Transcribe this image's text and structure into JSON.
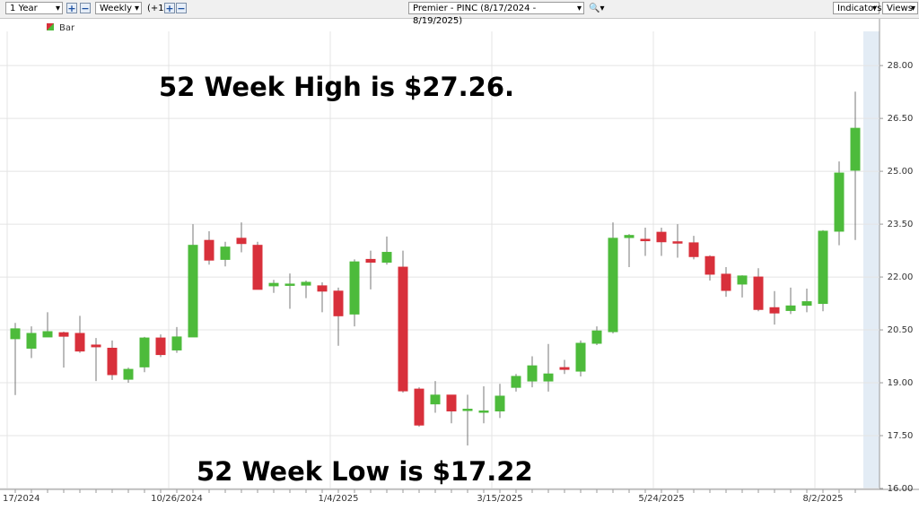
{
  "chart_data": {
    "type": "candlestick",
    "toolbar": {
      "range": "1 Year",
      "interval": "Weekly",
      "offset": "(+1)",
      "indicators": "Indicators",
      "views": "Views"
    },
    "title": "Premier - PINC (8/17/2024 - 8/19/2025)",
    "legend": "Bar",
    "annotations": [
      "52 Week High is $27.26.",
      "52 Week Low is $17.22"
    ],
    "categories": [
      "17/2024",
      null,
      null,
      null,
      null,
      null,
      null,
      null,
      null,
      null,
      "10/26/2024",
      null,
      null,
      null,
      null,
      null,
      null,
      null,
      null,
      null,
      "1/4/2025",
      null,
      null,
      null,
      null,
      null,
      null,
      null,
      null,
      null,
      "3/15/2025",
      null,
      null,
      null,
      null,
      null,
      null,
      null,
      null,
      null,
      "5/24/2025",
      null,
      null,
      null,
      null,
      null,
      null,
      null,
      null,
      null,
      "8/2/2025",
      null,
      null
    ],
    "open": [
      20.25,
      19.98,
      20.3,
      20.42,
      20.4,
      20.07,
      19.98,
      19.1,
      19.45,
      20.27,
      19.93,
      20.3,
      23.04,
      22.5,
      23.1,
      22.9,
      21.75,
      21.78,
      21.77,
      21.75,
      21.6,
      20.95,
      22.5,
      22.42,
      22.28,
      18.82,
      18.4,
      18.65,
      18.22,
      18.18,
      18.2,
      18.87,
      19.05,
      19.05,
      19.43,
      19.33,
      20.12,
      20.45,
      23.12,
      23.07,
      23.27,
      23.0,
      22.97,
      22.58,
      22.08,
      21.8,
      22.0,
      21.13,
      21.05,
      21.2,
      21.25,
      23.3,
      25.03
    ],
    "high": [
      20.7,
      20.6,
      21.0,
      20.45,
      20.9,
      20.27,
      20.2,
      19.43,
      20.3,
      20.37,
      20.58,
      23.5,
      23.3,
      23.0,
      23.55,
      23.0,
      21.92,
      22.1,
      21.9,
      21.85,
      21.7,
      22.5,
      22.75,
      23.15,
      22.75,
      18.87,
      19.05,
      18.65,
      18.66,
      18.9,
      18.97,
      19.25,
      19.75,
      20.1,
      19.65,
      20.2,
      20.6,
      23.55,
      23.22,
      23.4,
      23.4,
      23.5,
      23.17,
      22.62,
      22.28,
      22.05,
      22.25,
      21.6,
      21.7,
      21.67,
      23.33,
      25.28,
      27.26
    ],
    "low": [
      18.65,
      19.7,
      20.3,
      19.43,
      19.85,
      19.05,
      19.08,
      19.0,
      19.3,
      19.73,
      19.85,
      20.3,
      22.35,
      22.3,
      22.7,
      21.65,
      21.55,
      21.1,
      21.4,
      21.0,
      20.05,
      20.6,
      21.65,
      22.35,
      18.72,
      17.75,
      18.15,
      17.85,
      17.22,
      17.85,
      18.0,
      18.75,
      18.87,
      18.75,
      19.25,
      19.18,
      20.07,
      20.4,
      22.28,
      22.6,
      22.6,
      22.55,
      22.5,
      21.9,
      21.44,
      21.42,
      21.03,
      20.65,
      20.95,
      21.0,
      21.03,
      22.9,
      23.05
    ],
    "close": [
      20.53,
      20.4,
      20.45,
      20.32,
      19.9,
      20.02,
      19.23,
      19.38,
      20.27,
      19.8,
      20.3,
      22.9,
      22.48,
      22.85,
      22.95,
      21.65,
      21.82,
      21.8,
      21.85,
      21.6,
      20.9,
      22.43,
      22.42,
      22.7,
      18.77,
      17.8,
      18.65,
      18.2,
      18.25,
      18.2,
      18.62,
      19.18,
      19.48,
      19.25,
      19.38,
      20.12,
      20.47,
      23.1,
      23.18,
      23.03,
      23.0,
      22.98,
      22.58,
      22.08,
      21.62,
      22.03,
      21.08,
      20.98,
      21.18,
      21.3,
      23.3,
      24.95,
      26.22
    ],
    "ylim": [
      16,
      28.97
    ],
    "yticks": [
      {
        "value": 16,
        "label": "16.00"
      },
      {
        "value": 17.5,
        "label": "17.50"
      },
      {
        "value": 19,
        "label": "19.00"
      },
      {
        "value": 20.5,
        "label": "20.50"
      },
      {
        "value": 22,
        "label": "22.00"
      },
      {
        "value": 23.5,
        "label": "23.50"
      },
      {
        "value": 25,
        "label": "25.00"
      },
      {
        "value": 26.5,
        "label": "26.50"
      },
      {
        "value": 28,
        "label": "28.00"
      }
    ],
    "grid": true,
    "up_color": "#4dbb3b",
    "down_color": "#d8303b"
  }
}
